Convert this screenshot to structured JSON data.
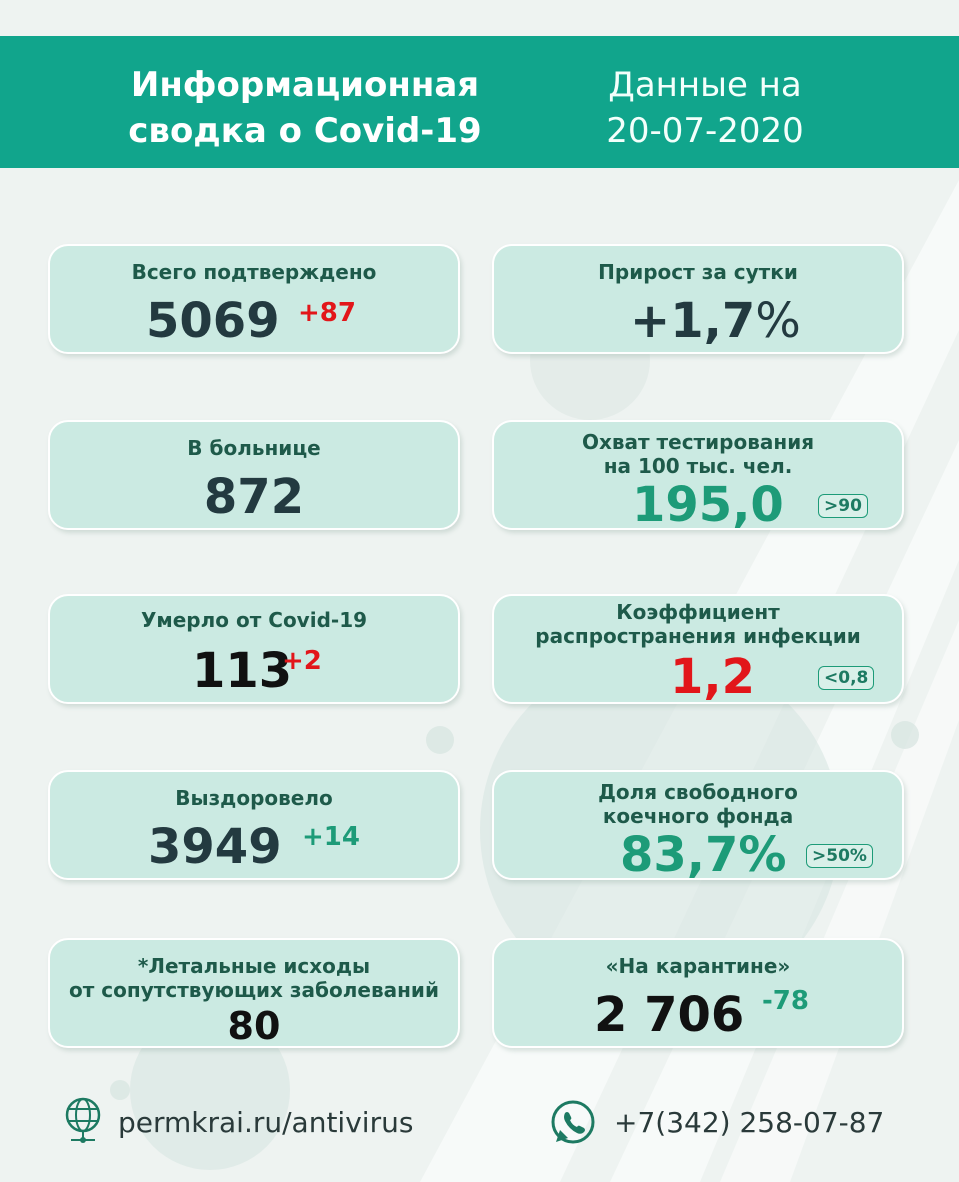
{
  "header": {
    "title_line1": "Информационная",
    "title_line2": "сводка о Covid-19",
    "date_line1": "Данные на",
    "date_line2": "20-07-2020"
  },
  "cards": {
    "confirmed": {
      "label": "Всего подтверждено",
      "value": "5069",
      "delta": "+87"
    },
    "growth": {
      "label": "Прирост за сутки",
      "value": "+1,7",
      "unit": "%"
    },
    "hospital": {
      "label": "В больнице",
      "value": "872"
    },
    "testing": {
      "label_line1": "Охват тестирования",
      "label_line2": "на 100 тыс. чел.",
      "value": "195,0",
      "badge": ">90"
    },
    "died": {
      "label": "Умерло от Covid-19",
      "value": "113",
      "delta": "+2"
    },
    "spread": {
      "label_line1": "Коэффициент",
      "label_line2": "распространения инфекции",
      "value": "1,2",
      "badge": "<0,8"
    },
    "recovered": {
      "label": "Выздоровело",
      "value": "3949",
      "delta": "+14"
    },
    "beds": {
      "label_line1": "Доля свободного",
      "label_line2": "коечного фонда",
      "value": "83,7%",
      "badge": ">50%"
    },
    "comorbid": {
      "label_line1": "*Летальные исходы",
      "label_line2": "от сопутствующих заболеваний",
      "value": "80"
    },
    "quarantine": {
      "label": "«На карантине»",
      "value": "2 706",
      "delta": "-78"
    }
  },
  "footer": {
    "website": "permkrai.ru/antivirus",
    "phone": "+7(342) 258-07-87",
    "globe_icon": "globe-icon",
    "phone_icon": "whatsapp-phone-icon"
  },
  "colors": {
    "header_bg": "#11a58c",
    "card_bg": "#cbeae2",
    "increase_red": "#e2161a",
    "positive_green": "#1d9b78"
  }
}
